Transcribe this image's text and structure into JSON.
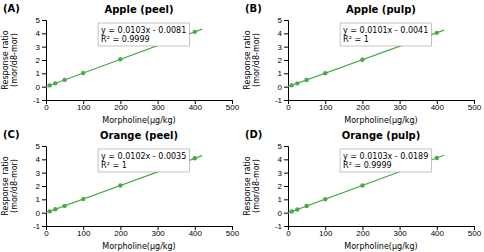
{
  "chart_data": [
    {
      "type": "scatter",
      "title": "Apple (peel)",
      "annotations": [
        "(A)",
        "y = 0.0103x - 0.0081",
        "R² = 0.9999"
      ],
      "x_label": "Morpholine(μg/kg)",
      "y_label": "Response ratio\n(mor/d8-mor)",
      "xlim": [
        0,
        500
      ],
      "xticks": [
        0,
        100,
        200,
        300,
        400,
        500
      ],
      "ylim": [
        -1,
        5
      ],
      "yticks": [
        -1,
        0,
        1,
        2,
        3,
        4,
        5
      ],
      "series": [
        {
          "type": "line",
          "color": "#4aaa4a",
          "x": [
            0,
            420
          ],
          "values": [
            -0.0081,
            4.3179
          ]
        },
        {
          "type": "scatter",
          "color": "#4aaa4a",
          "x": [
            10,
            25,
            50,
            100,
            200,
            400
          ],
          "values": [
            0.0949,
            0.2494,
            0.5069,
            1.0219,
            2.0519,
            4.1119
          ]
        }
      ]
    },
    {
      "type": "scatter",
      "title": "Apple (pulp)",
      "annotations": [
        "(B)",
        "y = 0.0101x - 0.0041",
        "R² = 1"
      ],
      "x_label": "Morpholine(μg/kg)",
      "y_label": "Response ratio\n(mor/d8-mor)",
      "xlim": [
        0,
        500
      ],
      "xticks": [
        0,
        100,
        200,
        300,
        400,
        500
      ],
      "ylim": [
        -1,
        5
      ],
      "yticks": [
        -1,
        0,
        1,
        2,
        3,
        4,
        5
      ],
      "series": [
        {
          "type": "line",
          "color": "#4aaa4a",
          "x": [
            0,
            420
          ],
          "values": [
            -0.0041,
            4.2379
          ]
        },
        {
          "type": "scatter",
          "color": "#4aaa4a",
          "x": [
            10,
            25,
            50,
            100,
            200,
            400
          ],
          "values": [
            0.0969,
            0.2484,
            0.5009,
            1.0059,
            2.0159,
            4.0359
          ]
        }
      ]
    },
    {
      "type": "scatter",
      "title": "Orange (peel)",
      "annotations": [
        "(C)",
        "y = 0.0102x - 0.0035",
        "R² = 1"
      ],
      "x_label": "Morpholine(μg/kg)",
      "y_label": "Response ratio\n(mor/d8-mor)",
      "xlim": [
        0,
        500
      ],
      "xticks": [
        0,
        100,
        200,
        300,
        400,
        500
      ],
      "ylim": [
        -1,
        5
      ],
      "yticks": [
        -1,
        0,
        1,
        2,
        3,
        4,
        5
      ],
      "series": [
        {
          "type": "line",
          "color": "#4aaa4a",
          "x": [
            0,
            420
          ],
          "values": [
            -0.0035,
            4.2805
          ]
        },
        {
          "type": "scatter",
          "color": "#4aaa4a",
          "x": [
            10,
            25,
            50,
            100,
            200,
            400
          ],
          "values": [
            0.0985,
            0.2515,
            0.5065,
            1.0165,
            2.0365,
            4.0765
          ]
        }
      ]
    },
    {
      "type": "scatter",
      "title": "Orange (pulp)",
      "annotations": [
        "(D)",
        "y = 0.0103x - 0.0189",
        "R² = 0.9999"
      ],
      "x_label": "Morpholine(μg/kg)",
      "y_label": "Response ratio\n(mor/d8-mor)",
      "xlim": [
        0,
        500
      ],
      "xticks": [
        0,
        100,
        200,
        300,
        400,
        500
      ],
      "ylim": [
        -1,
        5
      ],
      "yticks": [
        -1,
        0,
        1,
        2,
        3,
        4,
        5
      ],
      "series": [
        {
          "type": "line",
          "color": "#4aaa4a",
          "x": [
            0,
            420
          ],
          "values": [
            -0.0189,
            4.3071
          ]
        },
        {
          "type": "scatter",
          "color": "#4aaa4a",
          "x": [
            10,
            25,
            50,
            100,
            200,
            400
          ],
          "values": [
            0.0841,
            0.2386,
            0.4961,
            1.0111,
            2.0411,
            4.1011
          ]
        }
      ]
    }
  ]
}
